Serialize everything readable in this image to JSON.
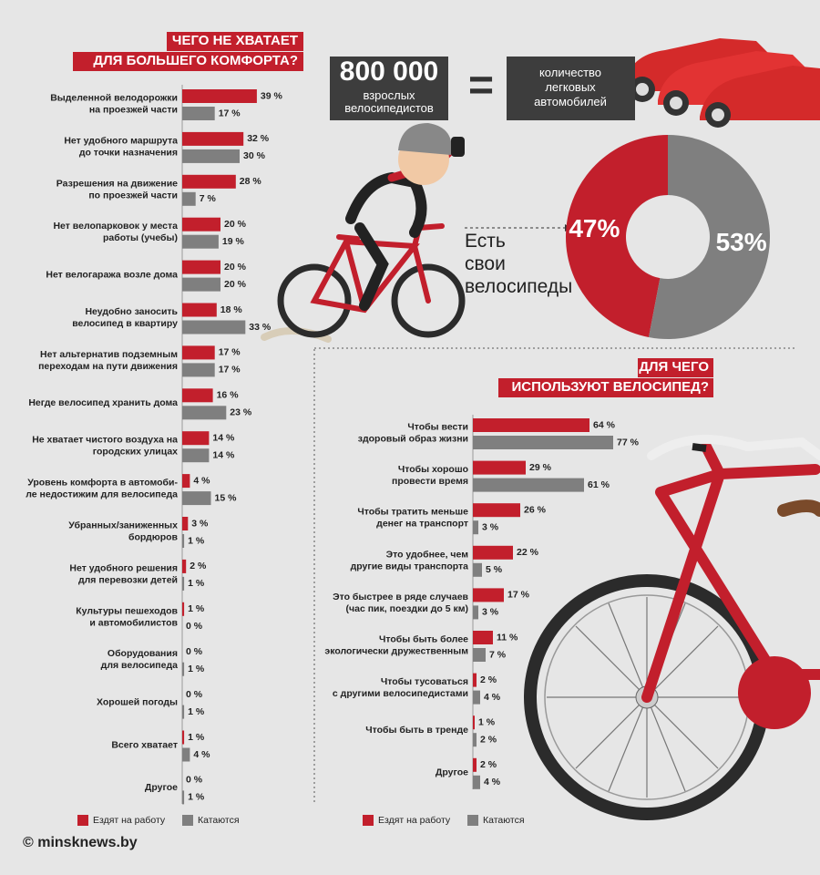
{
  "stats": {
    "number": "800 000",
    "number_caption": "взрослых\nвелосипедистов",
    "equals": "=",
    "cars_caption": "количество\nлегковых\nавтомобилей"
  },
  "footer": "© minsknews.by",
  "chart_data": [
    {
      "type": "hbar",
      "title": "ЧЕГО НЕ ХВАТАЕТ\nДЛЯ БОЛЬШЕГО КОМФОРТА?",
      "categories": [
        "Выделенной велодорожки\nна проезжей части",
        "Нет удобного маршрута\nдо точки назначения",
        "Разрешения на движение\nпо проезжей части",
        "Нет велопарковок у места\nработы (учебы)",
        "Нет велогаража возле дома",
        "Неудобно заносить\nвелосипед в квартиру",
        "Нет альтернатив подземным\nпереходам на пути движения",
        "Негде велосипед хранить дома",
        "Не хватает чистого воздуха на\nгородских улицах",
        "Уровень комфорта в автомоби-\nле недостижим для велосипеда",
        "Убранных/заниженных\nбордюров",
        "Нет удобного решения\nдля перевозки детей",
        "Культуры пешеходов\nи автомобилистов",
        "Оборудования\nдля велосипеда",
        "Хорошей погоды",
        "Всего хватает",
        "Другое"
      ],
      "series": [
        {
          "name": "Ездят на работу",
          "color": "#c21f2c",
          "values": [
            39,
            32,
            28,
            20,
            20,
            18,
            17,
            16,
            14,
            4,
            3,
            2,
            1,
            0,
            0,
            1,
            0
          ],
          "value_labels": [
            "39 %",
            "32 %",
            "28 %",
            "20 %",
            "20 %",
            "18 %",
            "17 %",
            "16 %",
            "14 %",
            "4 %",
            "3 %",
            "2 %",
            "1 %",
            "0 %",
            "0 %",
            "1 %",
            "0 %"
          ]
        },
        {
          "name": "Катаются",
          "color": "#7f7f7f",
          "values": [
            17,
            30,
            7,
            19,
            20,
            33,
            17,
            23,
            14,
            15,
            1,
            1,
            0,
            1,
            1,
            4,
            1
          ],
          "value_labels": [
            "17 %",
            "30 %",
            "7 %",
            "19 %",
            "20 %",
            "33 %",
            "17 %",
            "23 %",
            "14 %",
            "15 %",
            "1 %",
            "1 %",
            "0 %",
            "1 %",
            "1 %",
            "4 %",
            "1 %"
          ]
        }
      ],
      "xlim": [
        0,
        100
      ]
    },
    {
      "type": "pie",
      "categories": [
        "Есть\nсвои\nвелосипеды",
        null
      ],
      "values": [
        47,
        53
      ],
      "value_labels": [
        "47%",
        "53%"
      ],
      "colors": [
        "#c21f2c",
        "#7f7f7f"
      ],
      "donut": true
    },
    {
      "type": "hbar",
      "title": "ДЛЯ ЧЕГО\nИСПОЛЬЗУЮТ ВЕЛОСИПЕД?",
      "categories": [
        "Чтобы вести\nздоровый образ жизни",
        "Чтобы хорошо\nпровести время",
        "Чтобы тратить меньше\nденег на транспорт",
        "Это удобнее, чем\nдругие виды транспорта",
        "Это быстрее в ряде случаев\n(час пик, поездки до 5 км)",
        "Чтобы быть более\nэкологически дружественным",
        "Чтобы тусоваться\nс другими велосипедистами",
        "Чтобы быть в тренде",
        "Другое"
      ],
      "series": [
        {
          "name": "Ездят на работу",
          "color": "#c21f2c",
          "values": [
            64,
            29,
            26,
            22,
            17,
            11,
            2,
            1,
            2
          ],
          "value_labels": [
            "64 %",
            "29 %",
            "26 %",
            "22 %",
            "17 %",
            "11 %",
            "2 %",
            "1 %",
            "2 %"
          ]
        },
        {
          "name": "Катаются",
          "color": "#7f7f7f",
          "values": [
            77,
            61,
            3,
            5,
            3,
            7,
            4,
            2,
            4
          ],
          "value_labels": [
            "77 %",
            "61 %",
            "3 %",
            "5 %",
            "3 %",
            "7 %",
            "4 %",
            "2 %",
            "4 %"
          ]
        }
      ],
      "xlim": [
        0,
        100
      ]
    }
  ]
}
